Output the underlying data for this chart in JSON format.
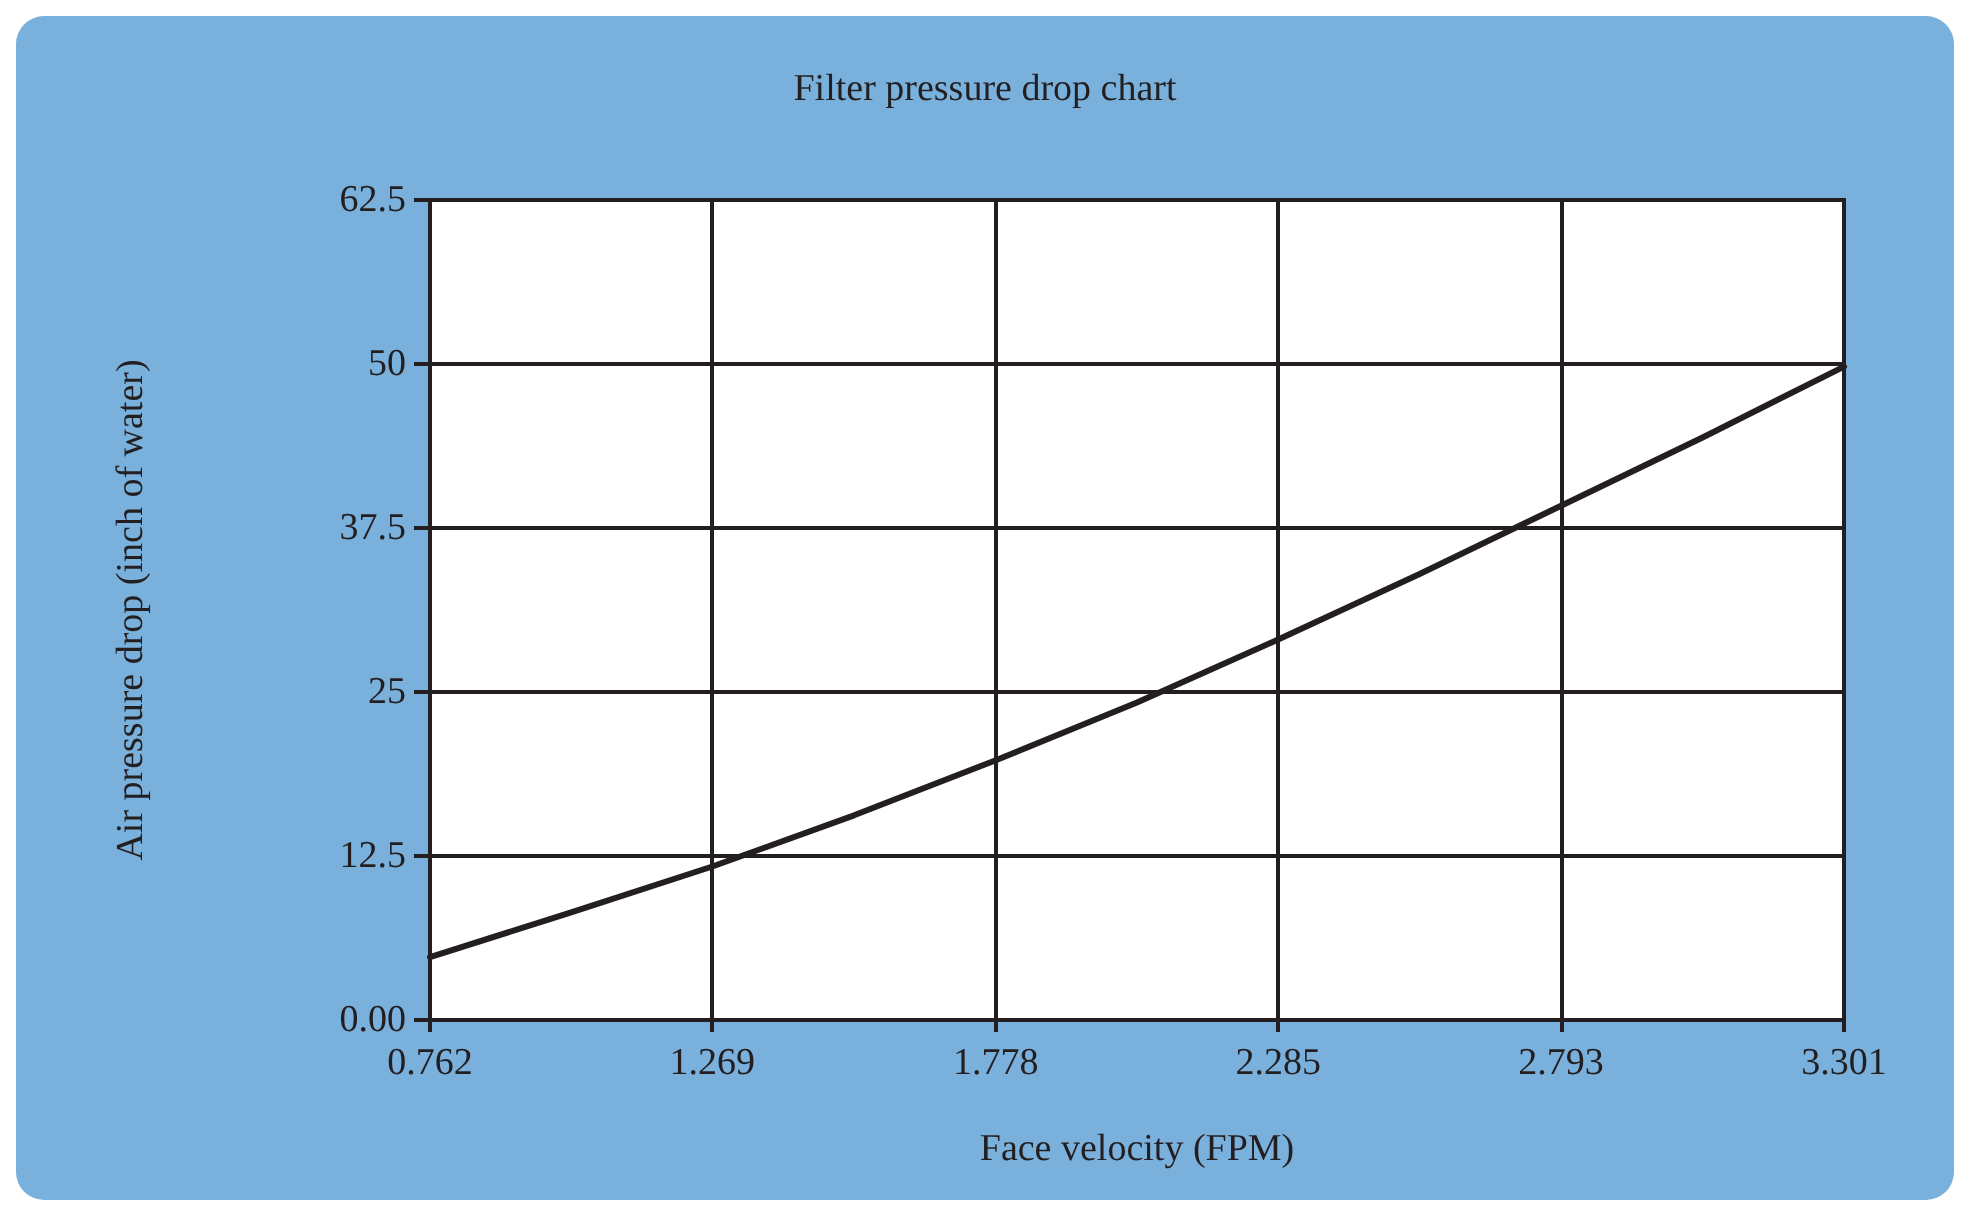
{
  "chart_data": {
    "type": "line",
    "title": "Filter pressure drop chart",
    "xlabel": "Face velocity (FPM)",
    "ylabel": "Air pressure drop (inch of water)",
    "x": [
      0.762,
      1.0155,
      1.269,
      1.5235,
      1.778,
      2.0315,
      2.285,
      2.539,
      2.793,
      3.047,
      3.301
    ],
    "series": [
      {
        "color": "#231f20",
        "values": [
          4.8,
          8.2,
          11.7,
          15.6,
          19.8,
          24.2,
          29.0,
          34.0,
          39.2,
          44.4,
          49.8
        ]
      }
    ],
    "xlim": [
      0.762,
      3.301
    ],
    "xticks": [
      0.762,
      1.269,
      1.778,
      2.285,
      2.793,
      3.301
    ],
    "ylim": [
      0,
      62.5
    ],
    "yticks": [
      {
        "value": 0,
        "label": "0.00"
      },
      12.5,
      25,
      37.5,
      50,
      62.5
    ],
    "grid": true,
    "marker": "none",
    "line_style": "solid"
  }
}
